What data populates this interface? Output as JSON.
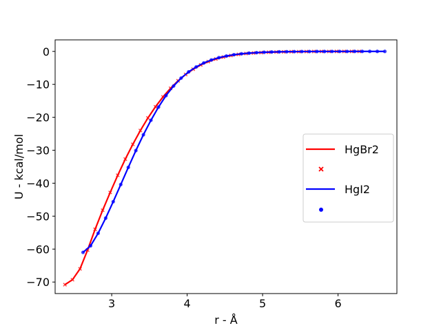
{
  "chart_data": {
    "type": "line",
    "title": "",
    "xlabel": "r - Å",
    "ylabel": "U - kcal/mol",
    "xlim": [
      2.25,
      6.78
    ],
    "ylim": [
      -73.5,
      3.5
    ],
    "x_ticks": [
      3,
      4,
      5,
      6
    ],
    "y_ticks": [
      0,
      -10,
      -20,
      -30,
      -40,
      -50,
      -60,
      -70
    ],
    "x_tick_labels": [
      "3",
      "4",
      "5",
      "6"
    ],
    "y_tick_labels": [
      "0",
      "−10",
      "−20",
      "−30",
      "−40",
      "−50",
      "−60",
      "−70"
    ],
    "grid": false,
    "legend_position": "right",
    "series": [
      {
        "name": "HgBr2",
        "color": "#ff0000",
        "style": "line",
        "x": [
          2.38,
          2.48,
          2.58,
          2.68,
          2.78,
          2.88,
          2.98,
          3.08,
          3.18,
          3.28,
          3.38,
          3.48,
          3.58,
          3.68,
          3.78,
          3.88,
          3.98,
          4.08,
          4.18,
          4.28,
          4.38,
          4.48,
          4.58,
          4.68,
          4.78,
          4.88,
          4.98,
          5.08,
          5.18,
          5.28,
          5.38,
          5.48,
          5.58,
          5.68,
          5.78,
          5.88,
          5.98,
          6.08,
          6.18,
          6.28
        ],
        "y": [
          -70.8,
          -69.3,
          -66.0,
          -60.3,
          -54.0,
          -48.2,
          -42.8,
          -37.6,
          -32.7,
          -28.2,
          -24.0,
          -20.2,
          -16.8,
          -13.8,
          -11.2,
          -8.9,
          -7.0,
          -5.4,
          -4.1,
          -3.1,
          -2.3,
          -1.7,
          -1.25,
          -0.9,
          -0.65,
          -0.47,
          -0.34,
          -0.25,
          -0.18,
          -0.13,
          -0.09,
          -0.07,
          -0.05,
          -0.03,
          -0.02,
          -0.02,
          -0.01,
          -0.01,
          -0.01,
          -0.01
        ]
      },
      {
        "name": "",
        "color": "#ff0000",
        "style": "marker-x",
        "x": [
          2.38,
          2.48,
          2.58,
          2.68,
          2.78,
          2.88,
          2.98,
          3.08,
          3.18,
          3.28,
          3.38,
          3.48,
          3.58,
          3.68,
          3.78,
          3.88,
          3.98,
          4.08,
          4.18,
          4.28,
          4.38,
          4.48,
          4.58,
          4.68,
          4.78,
          4.88,
          4.98,
          5.08,
          5.18,
          5.28,
          5.38,
          5.48,
          5.58,
          5.68,
          5.78,
          5.88,
          5.98,
          6.08,
          6.18,
          6.28
        ],
        "y": [
          -70.8,
          -69.3,
          -66.0,
          -60.3,
          -54.0,
          -48.2,
          -42.8,
          -37.6,
          -32.7,
          -28.2,
          -24.0,
          -20.2,
          -16.8,
          -13.8,
          -11.2,
          -8.9,
          -7.0,
          -5.4,
          -4.1,
          -3.1,
          -2.3,
          -1.7,
          -1.25,
          -0.9,
          -0.65,
          -0.47,
          -0.34,
          -0.25,
          -0.18,
          -0.13,
          -0.09,
          -0.07,
          -0.05,
          -0.03,
          -0.02,
          -0.02,
          -0.01,
          -0.01,
          -0.01,
          -0.01
        ]
      },
      {
        "name": "HgI2",
        "color": "#0000ff",
        "style": "line",
        "x": [
          2.62,
          2.72,
          2.82,
          2.92,
          3.02,
          3.12,
          3.22,
          3.32,
          3.42,
          3.52,
          3.62,
          3.72,
          3.82,
          3.92,
          4.02,
          4.12,
          4.22,
          4.32,
          4.42,
          4.52,
          4.62,
          4.72,
          4.82,
          4.92,
          5.02,
          5.12,
          5.22,
          5.32,
          5.42,
          5.52,
          5.62,
          5.72,
          5.82,
          5.92,
          6.02,
          6.12,
          6.22,
          6.32,
          6.42,
          6.52,
          6.62
        ],
        "y": [
          -61.0,
          -59.0,
          -55.2,
          -50.6,
          -45.6,
          -40.4,
          -35.2,
          -30.1,
          -25.3,
          -20.9,
          -16.9,
          -13.4,
          -10.5,
          -8.1,
          -6.2,
          -4.7,
          -3.5,
          -2.6,
          -1.9,
          -1.4,
          -1.0,
          -0.72,
          -0.52,
          -0.37,
          -0.26,
          -0.18,
          -0.13,
          -0.09,
          -0.06,
          -0.04,
          -0.03,
          -0.02,
          -0.02,
          -0.01,
          -0.01,
          -0.01,
          0.0,
          0.0,
          0.0,
          0.0,
          0.0
        ]
      },
      {
        "name": "",
        "color": "#0000ff",
        "style": "marker-dot",
        "x": [
          2.62,
          2.72,
          2.82,
          2.92,
          3.02,
          3.12,
          3.22,
          3.32,
          3.42,
          3.52,
          3.62,
          3.72,
          3.82,
          3.92,
          4.02,
          4.12,
          4.22,
          4.32,
          4.42,
          4.52,
          4.62,
          4.72,
          4.82,
          4.92,
          5.02,
          5.12,
          5.22,
          5.32,
          5.42,
          5.52,
          5.62,
          5.72,
          5.82,
          5.92,
          6.02,
          6.12,
          6.22,
          6.32,
          6.42,
          6.52,
          6.62
        ],
        "y": [
          -61.0,
          -59.0,
          -55.2,
          -50.6,
          -45.6,
          -40.4,
          -35.2,
          -30.1,
          -25.3,
          -20.9,
          -16.9,
          -13.4,
          -10.5,
          -8.1,
          -6.2,
          -4.7,
          -3.5,
          -2.6,
          -1.9,
          -1.4,
          -1.0,
          -0.72,
          -0.52,
          -0.37,
          -0.26,
          -0.18,
          -0.13,
          -0.09,
          -0.06,
          -0.04,
          -0.03,
          -0.02,
          -0.02,
          -0.01,
          -0.01,
          -0.01,
          0.0,
          0.0,
          0.0,
          0.0,
          0.0
        ]
      }
    ],
    "legend": [
      {
        "label": "HgBr2",
        "kind": "line",
        "color": "#ff0000"
      },
      {
        "label": "",
        "kind": "marker-x",
        "color": "#ff0000"
      },
      {
        "label": "HgI2",
        "kind": "line",
        "color": "#0000ff"
      },
      {
        "label": "",
        "kind": "marker-dot",
        "color": "#0000ff"
      }
    ]
  }
}
